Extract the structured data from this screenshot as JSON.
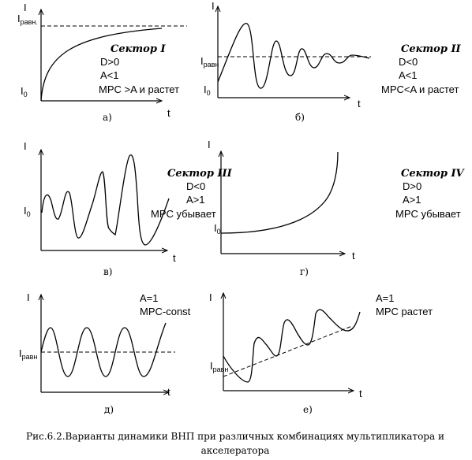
{
  "axis": {
    "y_label": "I",
    "x_label": "t",
    "eq_label": "I",
    "eq_sub": "равн",
    "zero_label": "I",
    "zero_sub": "0"
  },
  "panels": [
    {
      "id": "a",
      "letter": "а)",
      "sector": "Сектор I",
      "lines": [
        "D>0",
        "A<1",
        "MPC >A и растет"
      ],
      "eq_suffix": "."
    },
    {
      "id": "b",
      "letter": "б)",
      "sector": "Сектор II",
      "lines": [
        "D<0",
        "A<1",
        "MPC<A и растет"
      ]
    },
    {
      "id": "c",
      "letter": "в)",
      "sector": "Сектор III",
      "lines": [
        "D<0",
        "A>1",
        "MPC убывает"
      ]
    },
    {
      "id": "d",
      "letter": "г)",
      "sector": "Сектор IV",
      "lines": [
        "D>0",
        "A>1",
        "MPC убывает"
      ]
    },
    {
      "id": "e",
      "letter": "д)",
      "lines": [
        "A=1",
        "MPC-const"
      ]
    },
    {
      "id": "f",
      "letter": "е)",
      "lines": [
        "A=1",
        "MPC растет"
      ]
    }
  ],
  "caption": {
    "line1": "Рис.6.2.Варианты динамики ВНП при различных комбинациях мультипликатора и",
    "line2": "акселератора"
  }
}
